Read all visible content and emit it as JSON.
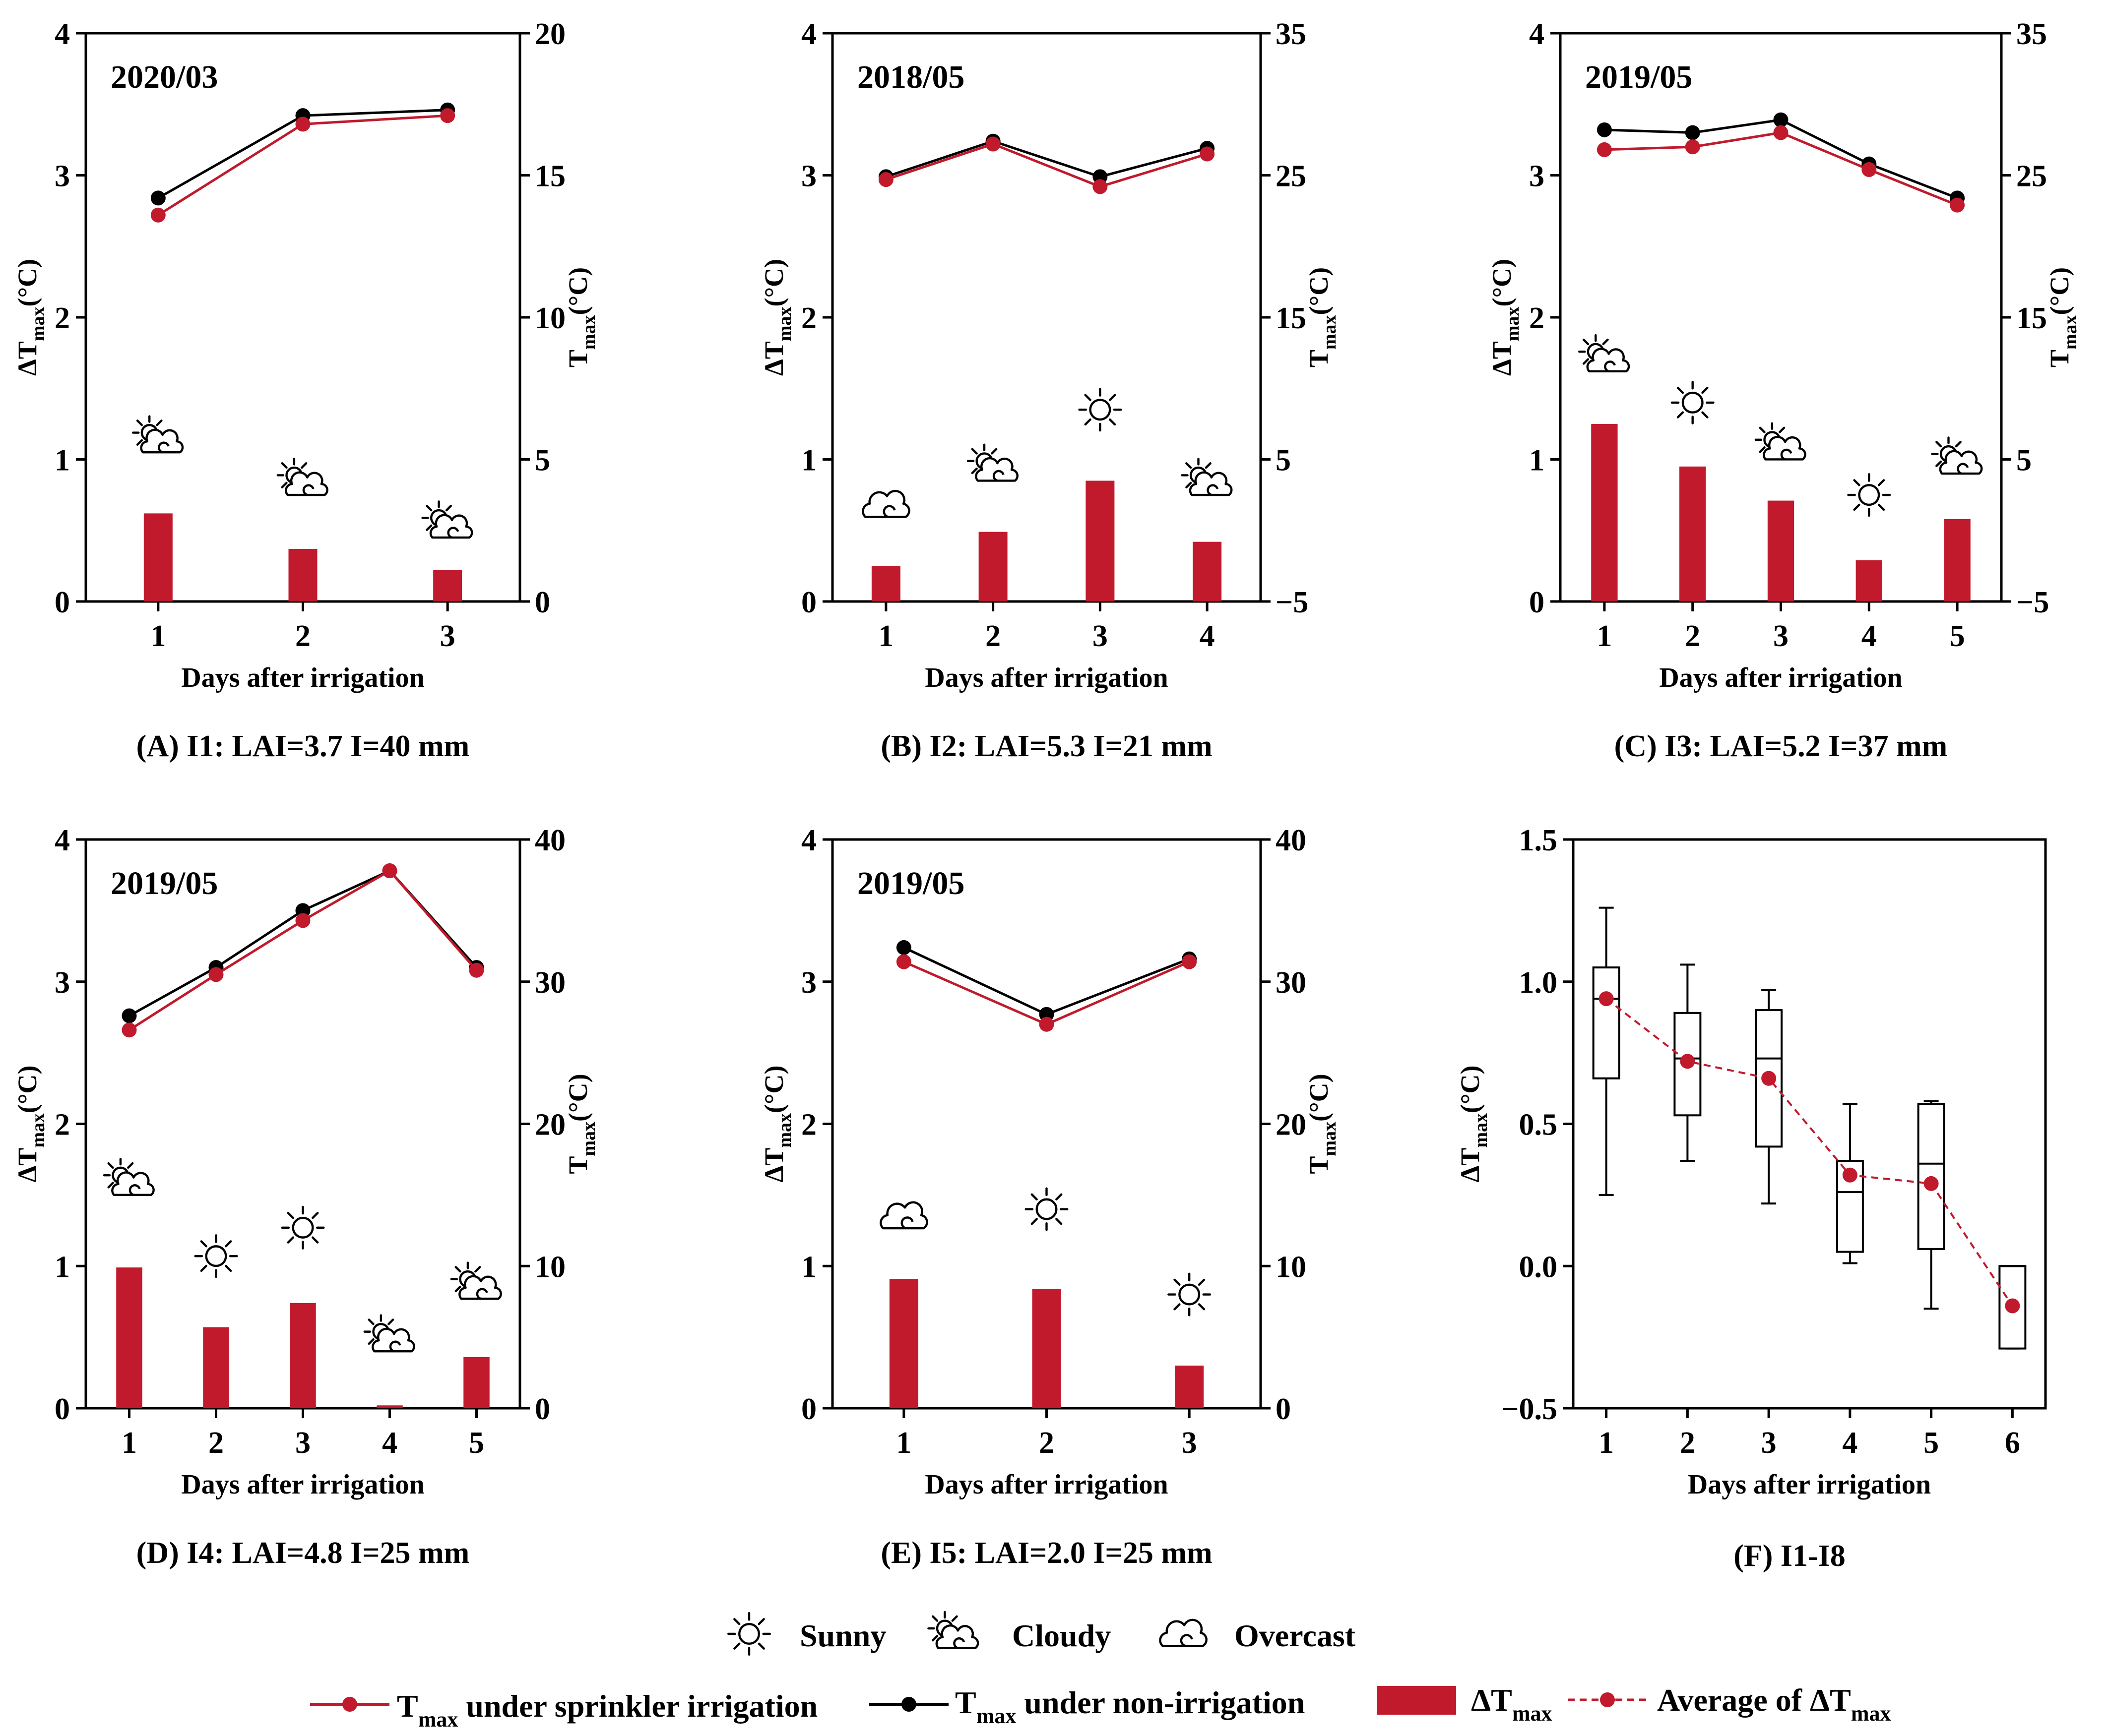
{
  "colors": {
    "irrigated": "#c01a2c",
    "non_irrigated": "#000000",
    "bar": "#c01a2c",
    "axis": "#000000"
  },
  "common": {
    "xlabel": "Days after irrigation",
    "ylabel_left_main": "ΔT",
    "ylabel_right_main": "T",
    "ylabel_sub": "max",
    "ylabel_unit": "(°C)"
  },
  "legend": {
    "sunny": "Sunny",
    "cloudy": "Cloudy",
    "overcast": "Overcast",
    "tmax": "T",
    "sub": "max",
    "sprinkler_text": "under sprinkler irrigation",
    "non_irr_text": "under non-irrigation",
    "delta_main": "ΔT",
    "average_text": "Average of ΔT"
  },
  "chart_data": [
    {
      "id": "A",
      "type": "bar+line",
      "date": "2020/03",
      "caption": "(A) I1: LAI=3.7  I=40 mm",
      "categories": [
        "1",
        "2",
        "3"
      ],
      "delta_tmax": [
        0.62,
        0.37,
        0.22
      ],
      "weather": [
        "cloudy",
        "cloudy",
        "cloudy"
      ],
      "weather_y": [
        1.15,
        0.85,
        0.55
      ],
      "tmax_irrigated": [
        13.6,
        16.8,
        17.1
      ],
      "tmax_non_irrigated": [
        14.2,
        17.1,
        17.3
      ],
      "left_ylim": [
        0,
        4
      ],
      "left_ticks": [
        "0",
        "1",
        "2",
        "3",
        "4"
      ],
      "right_ylim": [
        0,
        20
      ],
      "right_ticks": [
        "0",
        "5",
        "10",
        "15",
        "20"
      ]
    },
    {
      "id": "B",
      "type": "bar+line",
      "date": "2018/05",
      "caption": "(B) I2: LAI=5.3  I=21 mm",
      "categories": [
        "1",
        "2",
        "3",
        "4"
      ],
      "delta_tmax": [
        0.25,
        0.49,
        0.85,
        0.42
      ],
      "weather": [
        "overcast",
        "cloudy",
        "sunny",
        "cloudy"
      ],
      "weather_y": [
        0.68,
        0.95,
        1.35,
        0.85
      ],
      "tmax_irrigated": [
        24.7,
        27.2,
        24.2,
        26.5
      ],
      "tmax_non_irrigated": [
        24.9,
        27.4,
        24.9,
        26.9
      ],
      "left_ylim": [
        0,
        4
      ],
      "left_ticks": [
        "0",
        "1",
        "2",
        "3",
        "4"
      ],
      "right_ylim": [
        -5,
        35
      ],
      "right_ticks": [
        "−5",
        "5",
        "15",
        "25",
        "35"
      ]
    },
    {
      "id": "C",
      "type": "bar+line",
      "date": "2019/05",
      "caption": "(C) I3: LAI=5.2  I=37 mm",
      "categories": [
        "1",
        "2",
        "3",
        "4",
        "5"
      ],
      "delta_tmax": [
        1.25,
        0.95,
        0.71,
        0.29,
        0.58
      ],
      "weather": [
        "cloudy",
        "sunny",
        "cloudy",
        "sunny",
        "cloudy"
      ],
      "weather_y": [
        1.72,
        1.4,
        1.1,
        0.75,
        1.0
      ],
      "tmax_irrigated": [
        26.8,
        27.0,
        28.0,
        25.4,
        22.9
      ],
      "tmax_non_irrigated": [
        28.2,
        28.0,
        28.9,
        25.8,
        23.4
      ],
      "left_ylim": [
        0,
        4
      ],
      "left_ticks": [
        "0",
        "1",
        "2",
        "3",
        "4"
      ],
      "right_ylim": [
        -5,
        35
      ],
      "right_ticks": [
        "−5",
        "5",
        "15",
        "25",
        "35"
      ]
    },
    {
      "id": "D",
      "type": "bar+line",
      "date": "2019/05",
      "caption": "(D) I4: LAI=4.8  I=25 mm",
      "categories": [
        "1",
        "2",
        "3",
        "4",
        "5"
      ],
      "delta_tmax": [
        0.99,
        0.57,
        0.74,
        0.02,
        0.36
      ],
      "weather": [
        "cloudy",
        "sunny",
        "sunny",
        "cloudy",
        "cloudy"
      ],
      "weather_y": [
        1.6,
        1.07,
        1.27,
        0.5,
        0.87
      ],
      "tmax_irrigated": [
        26.6,
        30.5,
        34.3,
        37.8,
        30.8
      ],
      "tmax_non_irrigated": [
        27.6,
        31.0,
        35.0,
        37.8,
        31.0
      ],
      "left_ylim": [
        0,
        4
      ],
      "left_ticks": [
        "0",
        "1",
        "2",
        "3",
        "4"
      ],
      "right_ylim": [
        0,
        40
      ],
      "right_ticks": [
        "0",
        "10",
        "20",
        "30",
        "40"
      ]
    },
    {
      "id": "E",
      "type": "bar+line",
      "date": "2019/05",
      "caption": "(E) I5: LAI=2.0  I=25 mm",
      "categories": [
        "1",
        "2",
        "3"
      ],
      "delta_tmax": [
        0.91,
        0.84,
        0.3
      ],
      "weather": [
        "overcast",
        "sunny",
        "sunny"
      ],
      "weather_y": [
        1.35,
        1.4,
        0.8
      ],
      "tmax_irrigated": [
        31.4,
        27.0,
        31.4
      ],
      "tmax_non_irrigated": [
        32.4,
        27.7,
        31.6
      ],
      "left_ylim": [
        0,
        4
      ],
      "left_ticks": [
        "0",
        "1",
        "2",
        "3",
        "4"
      ],
      "right_ylim": [
        0,
        40
      ],
      "right_ticks": [
        "0",
        "10",
        "20",
        "30",
        "40"
      ]
    },
    {
      "id": "F",
      "type": "box",
      "caption": "(F) I1-I8",
      "categories": [
        "1",
        "2",
        "3",
        "4",
        "5",
        "6"
      ],
      "ylim": [
        -0.5,
        1.5
      ],
      "yticks": [
        "−0.5",
        "0.0",
        "0.5",
        "1.0",
        "1.5"
      ],
      "boxes": [
        {
          "min": 0.25,
          "q1": 0.66,
          "median": 0.94,
          "q3": 1.05,
          "max": 1.26
        },
        {
          "min": 0.37,
          "q1": 0.53,
          "median": 0.73,
          "q3": 0.89,
          "max": 1.06
        },
        {
          "min": 0.22,
          "q1": 0.42,
          "median": 0.73,
          "q3": 0.9,
          "max": 0.97
        },
        {
          "min": 0.01,
          "q1": 0.05,
          "median": 0.26,
          "q3": 0.37,
          "max": 0.57
        },
        {
          "min": -0.15,
          "q1": 0.06,
          "median": 0.36,
          "q3": 0.57,
          "max": 0.58
        },
        {
          "min": -0.29,
          "q1": -0.29,
          "median": 0.0,
          "q3": 0.0,
          "max": 0.0
        }
      ],
      "average": [
        0.94,
        0.72,
        0.66,
        0.32,
        0.29,
        -0.14
      ]
    }
  ]
}
